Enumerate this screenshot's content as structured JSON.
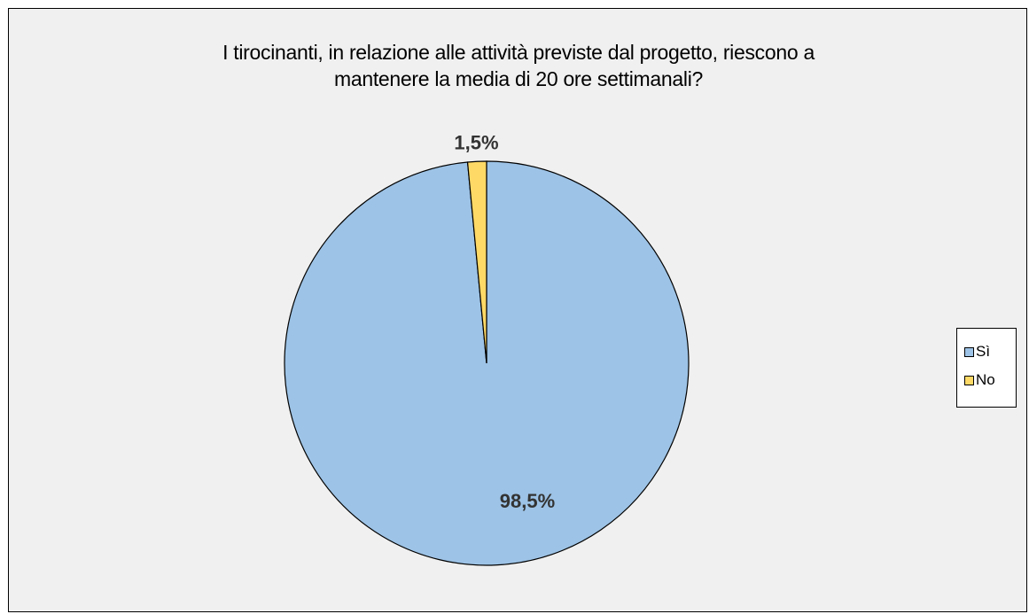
{
  "chart_data": {
    "type": "pie",
    "title_lines": [
      "I tirocinanti, in relazione alle attività previste dal progetto, riescono a",
      "mantenere la media di 20 ore settimanali?"
    ],
    "categories": [
      "Sì",
      "No"
    ],
    "values": [
      98.5,
      1.5
    ],
    "data_labels": [
      "98,5%",
      "1,5%"
    ],
    "colors": [
      "#9dc3e6",
      "#ffd966"
    ],
    "legend_position": "right",
    "start_angle_deg": 0,
    "direction": "clockwise"
  }
}
